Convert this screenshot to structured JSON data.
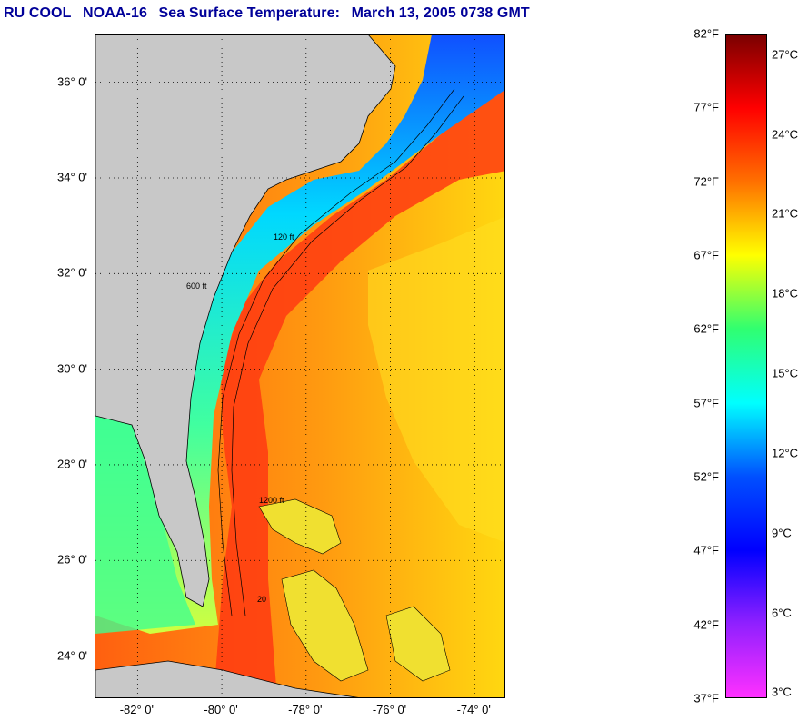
{
  "title": {
    "org": "RU COOL",
    "satellite": "NOAA-16",
    "product": "Sea Surface Temperature:",
    "datetime": "March 13, 2005 0738 GMT"
  },
  "map": {
    "lon_range": [
      -83.0,
      -73.25
    ],
    "lat_range": [
      23.1,
      37.0
    ],
    "lat_ticks": [
      {
        "value": 24,
        "label": "24° 0'"
      },
      {
        "value": 26,
        "label": "26° 0'"
      },
      {
        "value": 28,
        "label": "28° 0'"
      },
      {
        "value": 30,
        "label": "30° 0'"
      },
      {
        "value": 32,
        "label": "32° 0'"
      },
      {
        "value": 34,
        "label": "34° 0'"
      },
      {
        "value": 36,
        "label": "36° 0'"
      }
    ],
    "lon_ticks": [
      {
        "value": -82,
        "label": "-82° 0'"
      },
      {
        "value": -80,
        "label": "-80° 0'"
      },
      {
        "value": -78,
        "label": "-78° 0'"
      },
      {
        "value": -76,
        "label": "-76° 0'"
      },
      {
        "value": -74,
        "label": "-74° 0'"
      }
    ],
    "contour_labels": [
      "120 ft",
      "600 ft",
      "1200 ft",
      "20"
    ],
    "grid": "dotted"
  },
  "colorbar": {
    "min_f": 37,
    "max_f": 82,
    "fahrenheit_ticks": [
      {
        "value": 82,
        "label": "82°F"
      },
      {
        "value": 77,
        "label": "77°F"
      },
      {
        "value": 72,
        "label": "72°F"
      },
      {
        "value": 67,
        "label": "67°F"
      },
      {
        "value": 62,
        "label": "62°F"
      },
      {
        "value": 57,
        "label": "57°F"
      },
      {
        "value": 52,
        "label": "52°F"
      },
      {
        "value": 47,
        "label": "47°F"
      },
      {
        "value": 42,
        "label": "42°F"
      },
      {
        "value": 37,
        "label": "37°F"
      }
    ],
    "celsius_ticks": [
      {
        "value": 27,
        "label": "27°C"
      },
      {
        "value": 24,
        "label": "24°C"
      },
      {
        "value": 21,
        "label": "21°C"
      },
      {
        "value": 18,
        "label": "18°C"
      },
      {
        "value": 15,
        "label": "15°C"
      },
      {
        "value": 12,
        "label": "12°C"
      },
      {
        "value": 9,
        "label": "9°C"
      },
      {
        "value": 6,
        "label": "6°C"
      },
      {
        "value": 3,
        "label": "3°C"
      }
    ],
    "colors_top_to_bottom": [
      "#7a0000",
      "#ff0000",
      "#ff7000",
      "#ffff00",
      "#30ff70",
      "#00ffff",
      "#0050ff",
      "#0000ff",
      "#9020ff",
      "#ff30ff"
    ]
  }
}
